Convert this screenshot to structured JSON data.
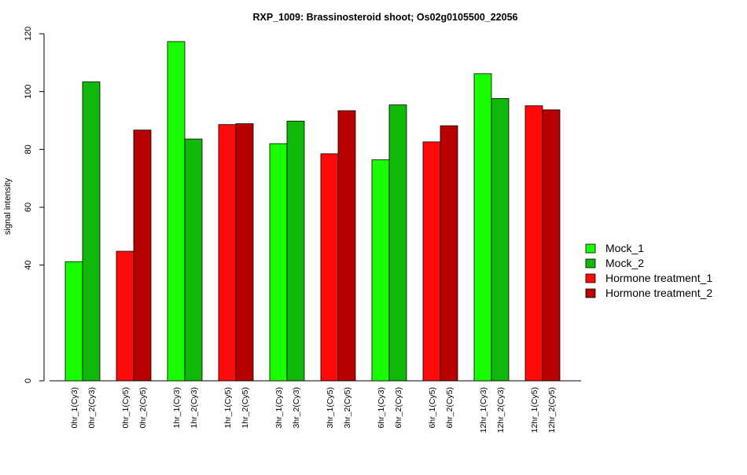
{
  "chart_data": {
    "type": "bar",
    "title": "RXP_1009: Brassinosteroid shoot; Os02g0105500_22056",
    "xlabel": "",
    "ylabel": "signal intensity",
    "ylim": [
      0,
      120
    ],
    "y_ticks": [
      0,
      40,
      60,
      80,
      100,
      120
    ],
    "grid": false,
    "legend_position": "right",
    "categories": [
      "0hr_1(Cy3)",
      "0hr_2(Cy3)",
      "0hr_1(Cy5)",
      "0hr_2(Cy5)",
      "1hr_1(Cy3)",
      "1hr_2(Cy3)",
      "1hr_1(Cy5)",
      "1hr_2(Cy5)",
      "3hr_1(Cy3)",
      "3hr_2(Cy3)",
      "3hr_1(Cy5)",
      "3hr_2(Cy5)",
      "6hr_1(Cy3)",
      "6hr_2(Cy3)",
      "6hr_1(Cy5)",
      "6hr_2(Cy5)",
      "12hr_1(Cy3)",
      "12hr_2(Cy3)",
      "12hr_1(Cy5)",
      "12hr_2(Cy5)"
    ],
    "values": [
      41.2,
      103.4,
      44.8,
      86.7,
      117.3,
      83.6,
      88.6,
      88.9,
      82.0,
      89.8,
      78.5,
      93.4,
      76.4,
      95.4,
      82.6,
      88.2,
      106.2,
      97.6,
      95.1,
      93.7
    ],
    "bar_series": [
      "Mock_1",
      "Mock_2",
      "Hormone treatment_1",
      "Hormone treatment_2",
      "Mock_1",
      "Mock_2",
      "Hormone treatment_1",
      "Hormone treatment_2",
      "Mock_1",
      "Mock_2",
      "Hormone treatment_1",
      "Hormone treatment_2",
      "Mock_1",
      "Mock_2",
      "Hormone treatment_1",
      "Hormone treatment_2",
      "Mock_1",
      "Mock_2",
      "Hormone treatment_1",
      "Hormone treatment_2"
    ],
    "legend": [
      {
        "name": "Mock_1",
        "color": "#19ff00"
      },
      {
        "name": "Mock_2",
        "color": "#10b80a"
      },
      {
        "name": "Hormone treatment_1",
        "color": "#ff0a0a"
      },
      {
        "name": "Hormone treatment_2",
        "color": "#b80000"
      }
    ]
  }
}
